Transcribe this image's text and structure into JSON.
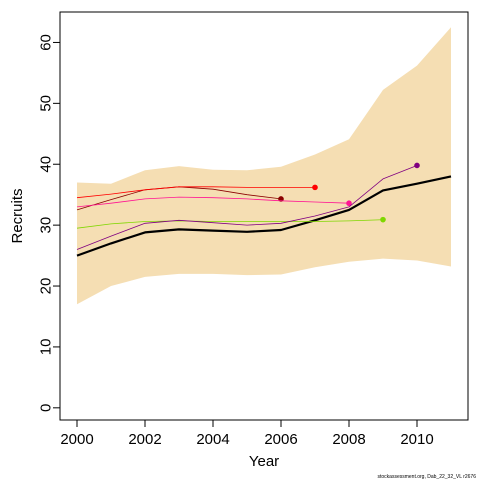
{
  "chart_data": {
    "type": "line",
    "title": "",
    "xlabel": "Year",
    "ylabel": "Recruits",
    "xlim": [
      1999.5,
      2011.5
    ],
    "ylim": [
      -2,
      65
    ],
    "x_ticks": [
      2000,
      2002,
      2004,
      2006,
      2008,
      2010
    ],
    "y_ticks": [
      0,
      10,
      20,
      30,
      40,
      50,
      60
    ],
    "grid": false,
    "legend": "none",
    "band": {
      "color": "#f5deb3",
      "x": [
        2000,
        2001,
        2002,
        2003,
        2004,
        2005,
        2006,
        2007,
        2008,
        2009,
        2010,
        2011
      ],
      "lower": [
        17,
        20,
        21.5,
        22,
        22,
        21.8,
        21.9,
        23.1,
        24,
        24.5,
        24.2,
        23.2
      ],
      "upper": [
        37,
        36.8,
        39,
        39.7,
        39.1,
        39,
        39.6,
        41.6,
        44.1,
        52.2,
        56.2,
        62.5
      ]
    },
    "series": [
      {
        "color": "#000000",
        "width": 2.2,
        "end_point": false,
        "x": [
          2000,
          2001,
          2002,
          2003,
          2004,
          2005,
          2006,
          2007,
          2008,
          2009,
          2010,
          2011
        ],
        "values": [
          25,
          27,
          28.8,
          29.3,
          29.1,
          28.9,
          29.2,
          30.8,
          32.5,
          35.7,
          36.8,
          38
        ]
      },
      {
        "color": "#8b0000",
        "width": 0.8,
        "end_point": true,
        "x": [
          2000,
          2001,
          2002,
          2003,
          2004,
          2005,
          2006
        ],
        "values": [
          32.5,
          34.2,
          35.8,
          36.3,
          35.9,
          35,
          34.3
        ]
      },
      {
        "color": "#ff0000",
        "width": 0.8,
        "end_point": true,
        "x": [
          2000,
          2001,
          2002,
          2003,
          2004,
          2005,
          2006,
          2007
        ],
        "values": [
          34.5,
          35.1,
          35.8,
          36.3,
          36.3,
          36.2,
          36.2,
          36.2
        ]
      },
      {
        "color": "#ff1493",
        "width": 0.8,
        "end_point": true,
        "x": [
          2000,
          2001,
          2002,
          2003,
          2004,
          2005,
          2006,
          2007,
          2008
        ],
        "values": [
          33,
          33.6,
          34.3,
          34.6,
          34.5,
          34.3,
          34,
          33.8,
          33.6
        ]
      },
      {
        "color": "#7fd700",
        "width": 0.8,
        "end_point": true,
        "x": [
          2000,
          2001,
          2002,
          2003,
          2004,
          2005,
          2006,
          2007,
          2008,
          2009
        ],
        "values": [
          29.5,
          30.2,
          30.6,
          30.7,
          30.6,
          30.6,
          30.6,
          30.6,
          30.7,
          30.9
        ]
      },
      {
        "color": "#800080",
        "width": 0.8,
        "end_point": true,
        "x": [
          2000,
          2001,
          2002,
          2003,
          2004,
          2005,
          2006,
          2007,
          2008,
          2009,
          2010
        ],
        "values": [
          26,
          28.2,
          30.3,
          30.8,
          30.4,
          30,
          30.3,
          31.5,
          33,
          37.6,
          39.8
        ]
      }
    ]
  },
  "footer": {
    "note": "stockassessment.org, Dab_22_32_VL r2676"
  }
}
